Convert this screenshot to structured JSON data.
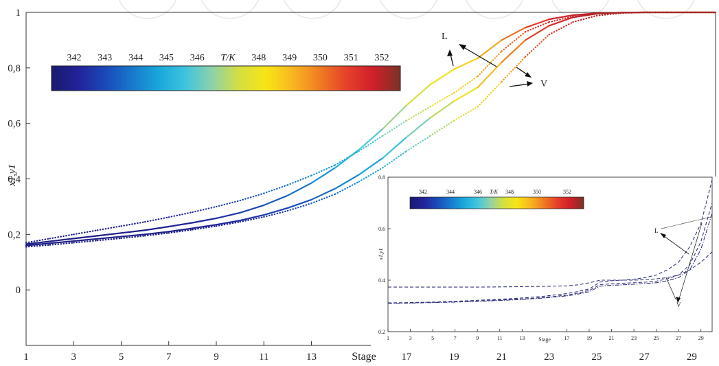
{
  "chart_data": [
    {
      "type": "line",
      "role": "main",
      "xlabel": "Stage",
      "ylabel": "x1,y1",
      "xlim": [
        1,
        30
      ],
      "ylim": [
        -0.2,
        1.0
      ],
      "x_ticks": [
        1,
        3,
        5,
        7,
        9,
        11,
        13,
        17,
        19,
        21,
        23,
        25,
        27,
        29
      ],
      "y_ticks": [
        {
          "v": 1,
          "label": "1"
        },
        {
          "v": 0.8,
          "label": "0,8"
        },
        {
          "v": 0.6,
          "label": "0,6"
        },
        {
          "v": 0.4,
          "label": "0,4"
        },
        {
          "v": 0.2,
          "label": "0,2"
        },
        {
          "v": 0,
          "label": "0"
        }
      ],
      "grid": false,
      "colorbar": {
        "title": "T/K",
        "ticks": [
          "342",
          "343",
          "344",
          "345",
          "346",
          "T/K",
          "348",
          "349",
          "350",
          "351",
          "352"
        ],
        "range": [
          341.5,
          353
        ],
        "colors": [
          "#1a1a6e",
          "#23229a",
          "#1a49b8",
          "#1878cc",
          "#19a7db",
          "#3fc4df",
          "#8fd2a8",
          "#d6de40",
          "#f7e514",
          "#f8b621",
          "#f07c22",
          "#e5402a",
          "#cf1f2a",
          "#7a3326"
        ]
      },
      "annotations": [
        "L",
        "V"
      ],
      "series": [
        {
          "style": "solid",
          "x": [
            1,
            2,
            3,
            4,
            5,
            6,
            7,
            8,
            9,
            10,
            11,
            12,
            13,
            14,
            15,
            16,
            17,
            18,
            19,
            20,
            21,
            22,
            23,
            24,
            25,
            26,
            27,
            28,
            29,
            30
          ],
          "y": [
            0.165,
            0.175,
            0.185,
            0.195,
            0.205,
            0.215,
            0.228,
            0.242,
            0.258,
            0.278,
            0.305,
            0.34,
            0.385,
            0.44,
            0.505,
            0.58,
            0.665,
            0.74,
            0.795,
            0.835,
            0.9,
            0.945,
            0.975,
            0.99,
            0.997,
            0.999,
            1.0,
            1.0,
            1.0,
            1.0
          ],
          "T": [
            342,
            342,
            342,
            342,
            342,
            342,
            342.2,
            342.4,
            342.6,
            342.9,
            343.3,
            343.8,
            344.3,
            345,
            345.8,
            346.6,
            347.4,
            348,
            348.6,
            349.3,
            350,
            351,
            351.8,
            352.2,
            352.4,
            352.5,
            352.5,
            352.5,
            352.5,
            352.5
          ]
        },
        {
          "style": "solid",
          "x": [
            1,
            2,
            3,
            4,
            5,
            6,
            7,
            8,
            9,
            10,
            11,
            12,
            13,
            14,
            15,
            16,
            17,
            18,
            19,
            20,
            21,
            22,
            23,
            24,
            25,
            26,
            27,
            28,
            29,
            30
          ],
          "y": [
            0.16,
            0.168,
            0.176,
            0.184,
            0.192,
            0.2,
            0.21,
            0.222,
            0.235,
            0.25,
            0.27,
            0.295,
            0.325,
            0.365,
            0.415,
            0.475,
            0.55,
            0.62,
            0.68,
            0.73,
            0.82,
            0.9,
            0.952,
            0.982,
            0.995,
            0.999,
            1.0,
            1.0,
            1.0,
            1.0
          ],
          "T": [
            342,
            342,
            342,
            342,
            342,
            342,
            342,
            342.2,
            342.4,
            342.6,
            342.9,
            343.2,
            343.6,
            344.1,
            344.7,
            345.4,
            346.2,
            347,
            347.9,
            348.8,
            349.8,
            350.8,
            351.6,
            352.1,
            352.4,
            352.5,
            352.5,
            352.5,
            352.5,
            352.5
          ]
        },
        {
          "style": "dotted",
          "x": [
            1,
            2,
            3,
            4,
            5,
            6,
            7,
            8,
            9,
            10,
            11,
            12,
            13,
            14,
            15,
            16,
            17,
            18,
            19,
            20,
            21,
            22,
            23,
            24,
            25,
            26,
            27,
            28,
            29,
            30
          ],
          "y": [
            0.17,
            0.185,
            0.2,
            0.215,
            0.23,
            0.245,
            0.262,
            0.28,
            0.3,
            0.322,
            0.348,
            0.378,
            0.412,
            0.45,
            0.5,
            0.555,
            0.61,
            0.66,
            0.71,
            0.77,
            0.86,
            0.93,
            0.965,
            0.985,
            0.995,
            0.999,
            1.0,
            1.0,
            1.0,
            1.0
          ],
          "T": [
            342,
            342,
            342,
            342,
            342,
            342.2,
            342.4,
            342.6,
            342.9,
            343.2,
            343.6,
            344,
            344.5,
            345,
            345.6,
            346.3,
            347,
            347.8,
            348.6,
            349.4,
            350.3,
            351.2,
            351.9,
            352.3,
            352.5,
            352.5,
            352.5,
            352.5,
            352.5,
            352.5
          ]
        },
        {
          "style": "dotted",
          "x": [
            1,
            2,
            3,
            4,
            5,
            6,
            7,
            8,
            9,
            10,
            11,
            12,
            13,
            14,
            15,
            16,
            17,
            18,
            19,
            20,
            21,
            22,
            23,
            24,
            25,
            26,
            27,
            28,
            29,
            30
          ],
          "y": [
            0.155,
            0.162,
            0.17,
            0.178,
            0.186,
            0.195,
            0.205,
            0.217,
            0.23,
            0.245,
            0.263,
            0.285,
            0.312,
            0.345,
            0.39,
            0.44,
            0.5,
            0.555,
            0.61,
            0.66,
            0.75,
            0.84,
            0.92,
            0.965,
            0.988,
            0.997,
            1.0,
            1.0,
            1.0,
            1.0
          ],
          "T": [
            342,
            342,
            342,
            342,
            342,
            342,
            342,
            342,
            342.2,
            342.4,
            342.7,
            343,
            343.4,
            343.9,
            344.5,
            345.2,
            346,
            346.8,
            347.6,
            348.4,
            349.4,
            350.4,
            351.4,
            352,
            352.4,
            352.5,
            352.5,
            352.5,
            352.5,
            352.5
          ]
        }
      ]
    },
    {
      "type": "line",
      "role": "inset",
      "xlabel": "Stage",
      "ylabel": "x1,y1",
      "xlim": [
        1,
        30
      ],
      "ylim": [
        0.2,
        0.8
      ],
      "x_ticks": [
        1,
        3,
        5,
        7,
        9,
        11,
        13,
        17,
        19,
        21,
        23,
        25,
        27,
        29
      ],
      "y_ticks": [
        {
          "v": 0.8,
          "label": "0.8"
        },
        {
          "v": 0.6,
          "label": "0.6"
        },
        {
          "v": 0.4,
          "label": "0.4"
        },
        {
          "v": 0.2,
          "label": "0.2"
        }
      ],
      "colorbar": {
        "title": "T/K",
        "ticks": [
          "342",
          "344",
          "346",
          "T/K",
          "348",
          "350",
          "352"
        ]
      },
      "annotations": [
        "L",
        "V"
      ],
      "series": [
        {
          "style": "dashed",
          "x": [
            1,
            3,
            5,
            7,
            9,
            11,
            13,
            15,
            17,
            18,
            19,
            20,
            21,
            22,
            23,
            24,
            25,
            26,
            27,
            28,
            29,
            30
          ],
          "y": [
            0.373,
            0.373,
            0.373,
            0.373,
            0.373,
            0.374,
            0.375,
            0.376,
            0.378,
            0.382,
            0.39,
            0.4,
            0.4,
            0.4,
            0.4,
            0.402,
            0.405,
            0.41,
            0.42,
            0.44,
            0.47,
            0.51
          ]
        },
        {
          "style": "dashed",
          "x": [
            1,
            3,
            5,
            7,
            9,
            11,
            13,
            15,
            17,
            18,
            19,
            20,
            21,
            22,
            23,
            24,
            25,
            26,
            27,
            28,
            29,
            30
          ],
          "y": [
            0.312,
            0.313,
            0.315,
            0.318,
            0.322,
            0.326,
            0.331,
            0.338,
            0.348,
            0.356,
            0.366,
            0.393,
            0.398,
            0.4,
            0.404,
            0.41,
            0.42,
            0.44,
            0.47,
            0.53,
            0.62,
            0.79
          ]
        },
        {
          "style": "dashed",
          "x": [
            1,
            3,
            5,
            7,
            9,
            11,
            13,
            15,
            17,
            18,
            19,
            20,
            21,
            22,
            23,
            24,
            25,
            26,
            27,
            28,
            29,
            30
          ],
          "y": [
            0.311,
            0.312,
            0.314,
            0.316,
            0.319,
            0.323,
            0.327,
            0.333,
            0.342,
            0.35,
            0.36,
            0.383,
            0.386,
            0.388,
            0.39,
            0.392,
            0.396,
            0.405,
            0.42,
            0.46,
            0.55,
            0.7
          ]
        },
        {
          "style": "dashdot",
          "x": [
            1,
            3,
            5,
            7,
            9,
            11,
            13,
            15,
            17,
            18,
            19,
            20,
            21,
            22,
            23,
            24,
            25,
            26,
            27,
            28,
            29,
            30
          ],
          "y": [
            0.31,
            0.311,
            0.313,
            0.315,
            0.318,
            0.321,
            0.325,
            0.331,
            0.339,
            0.346,
            0.355,
            0.377,
            0.38,
            0.382,
            0.384,
            0.387,
            0.39,
            0.398,
            0.41,
            0.44,
            0.52,
            0.66
          ]
        }
      ]
    }
  ]
}
